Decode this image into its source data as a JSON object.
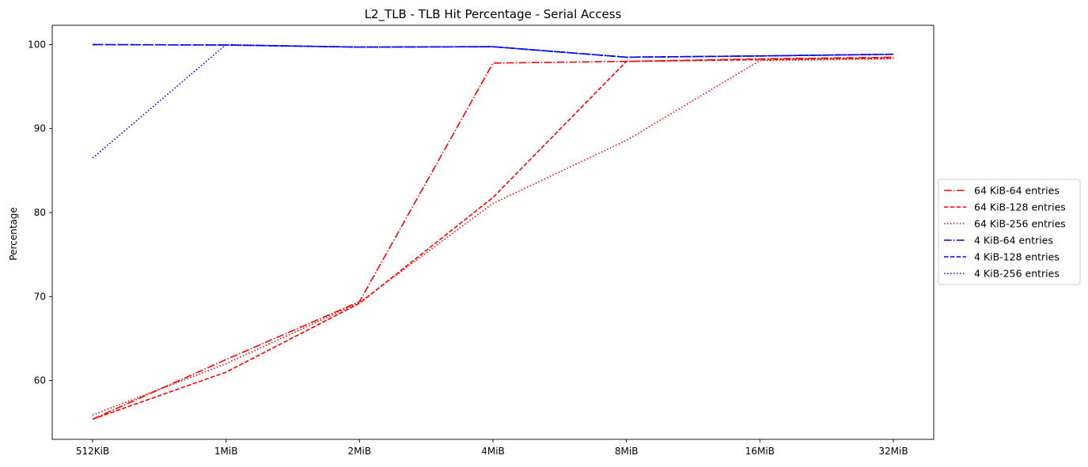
{
  "chart_data": {
    "type": "line",
    "title": "L2_TLB - TLB Hit Percentage - Serial Access",
    "xlabel": "",
    "ylabel": "Percentage",
    "categories": [
      "512KiB",
      "1MiB",
      "2MiB",
      "4MiB",
      "8MiB",
      "16MiB",
      "32MiB"
    ],
    "ylim": [
      53,
      102.3
    ],
    "yticks": [
      60,
      70,
      80,
      90,
      100
    ],
    "grid": false,
    "legend_position": "center-right-outside",
    "series": [
      {
        "name": "64 KiB-64 entries",
        "color": "#ff0000",
        "dash": "dashdot",
        "values": [
          55.4,
          62.5,
          69.4,
          97.8,
          98.0,
          98.3,
          98.5
        ]
      },
      {
        "name": "64 KiB-128 entries",
        "color": "#ff0000",
        "dash": "dashed",
        "values": [
          55.4,
          61.0,
          69.2,
          81.8,
          98.0,
          98.2,
          98.4
        ]
      },
      {
        "name": "64 KiB-256 entries",
        "color": "#ff0000",
        "dash": "dotted",
        "values": [
          55.9,
          62.0,
          69.3,
          81.1,
          88.6,
          98.1,
          98.3
        ]
      },
      {
        "name": "4 KiB-64 entries",
        "color": "#0000ff",
        "dash": "dashdot",
        "values": [
          100.0,
          99.95,
          99.7,
          99.75,
          98.5,
          98.65,
          98.85
        ]
      },
      {
        "name": "4 KiB-128 entries",
        "color": "#0000ff",
        "dash": "dashed",
        "values": [
          100.0,
          99.95,
          99.7,
          99.75,
          98.5,
          98.65,
          98.85
        ]
      },
      {
        "name": "4 KiB-256 entries",
        "color": "#0000ff",
        "dash": "dotted",
        "values": [
          86.5,
          100.0,
          99.7,
          99.75,
          98.5,
          98.65,
          98.85
        ]
      }
    ]
  }
}
